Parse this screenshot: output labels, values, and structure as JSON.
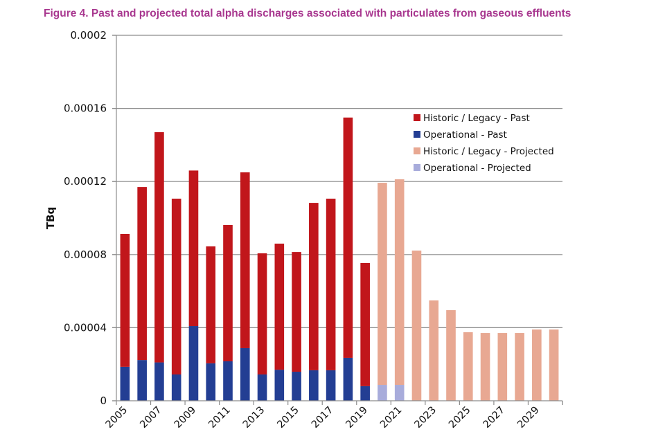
{
  "figure": {
    "title": "Figure 4.   Past and projected total alpha discharges associated with particulates from gaseous effluents"
  },
  "chart_data": {
    "type": "bar",
    "stacked": true,
    "title": "Past and projected total alpha discharges associated with particulates from gaseous effluents",
    "xlabel": "",
    "ylabel": "TBq",
    "ylim": [
      0,
      0.0002
    ],
    "yticks": [
      0,
      4e-05,
      8e-05,
      0.00012,
      0.00016,
      0.0002
    ],
    "ytick_labels": [
      "0",
      "0.00004",
      "0.00008",
      "0.00012",
      "0.00016",
      "0.0002"
    ],
    "grid": true,
    "legend_position": "top-right",
    "categories": [
      "2005",
      "2006",
      "2007",
      "2008",
      "2009",
      "2010",
      "2011",
      "2012",
      "2013",
      "2014",
      "2015",
      "2016",
      "2017",
      "2018",
      "2019",
      "2020",
      "2021",
      "2022",
      "2023",
      "2024",
      "2025",
      "2026",
      "2027",
      "2028",
      "2029",
      "2030"
    ],
    "xtick_labels": [
      "2005",
      "",
      "2007",
      "",
      "2009",
      "",
      "2011",
      "",
      "2013",
      "",
      "2015",
      "",
      "2017",
      "",
      "2019",
      "",
      "2021",
      "",
      "2023",
      "",
      "2025",
      "",
      "2027",
      "",
      "2029",
      ""
    ],
    "series": [
      {
        "name": "Operational - Past",
        "color": "#233e93",
        "values": [
          1.86e-05,
          2.23e-05,
          2.1e-05,
          1.44e-05,
          4.09e-05,
          2.05e-05,
          2.16e-05,
          2.88e-05,
          1.44e-05,
          1.7e-05,
          1.59e-05,
          1.67e-05,
          1.67e-05,
          2.35e-05,
          8e-06,
          0,
          0,
          0,
          0,
          0,
          0,
          0,
          0,
          0,
          0,
          0
        ]
      },
      {
        "name": "Operational - Projected",
        "color": "#a8acdb",
        "values": [
          0,
          0,
          0,
          0,
          0,
          0,
          0,
          0,
          0,
          0,
          0,
          0,
          0,
          0,
          0,
          8.7e-06,
          8.7e-06,
          0,
          0,
          0,
          0,
          0,
          0,
          0,
          0,
          0
        ]
      },
      {
        "name": "Historic / Legacy - Past",
        "color": "#c1161b",
        "values": [
          7.27e-05,
          9.47e-05,
          0.000126,
          9.62e-05,
          8.51e-05,
          6.4e-05,
          7.46e-05,
          9.62e-05,
          6.63e-05,
          6.9e-05,
          6.55e-05,
          9.16e-05,
          9.39e-05,
          0.0001315,
          6.74e-05,
          0,
          0,
          0,
          0,
          0,
          0,
          0,
          0,
          0,
          0,
          0
        ]
      },
      {
        "name": "Historic / Legacy - Projected",
        "color": "#e8a892",
        "values": [
          0,
          0,
          0,
          0,
          0,
          0,
          0,
          0,
          0,
          0,
          0,
          0,
          0,
          0,
          0,
          0.0001106,
          0.0001125,
          8.22e-05,
          5.49e-05,
          4.96e-05,
          3.75e-05,
          3.71e-05,
          3.71e-05,
          3.71e-05,
          3.9e-05,
          3.9e-05
        ]
      }
    ],
    "legend": [
      {
        "label": "Historic / Legacy - Past",
        "color": "#c1161b"
      },
      {
        "label": "Operational - Past",
        "color": "#233e93"
      },
      {
        "label": "Historic / Legacy - Projected",
        "color": "#e8a892"
      },
      {
        "label": "Operational - Projected",
        "color": "#a8acdb"
      }
    ]
  }
}
